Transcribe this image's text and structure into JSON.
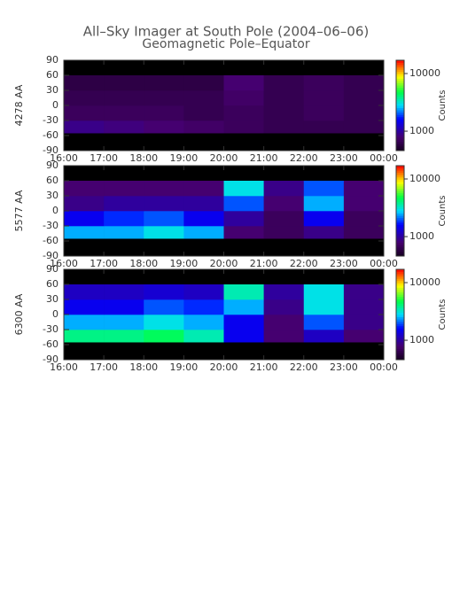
{
  "chart_data": [
    {
      "type": "heatmap",
      "title": "All–Sky Imager at South Pole (2004–06–06)",
      "subtitle": "Geomagnetic Pole–Equator",
      "ylabel": "4278 AA",
      "colorbar_label": "Counts",
      "x_bins": [
        16,
        17,
        18,
        19,
        20,
        21,
        22,
        23,
        24
      ],
      "y_bins": [
        -90,
        -55,
        -30,
        0,
        30,
        60,
        90
      ],
      "values": [
        [
          null,
          null,
          null,
          null,
          null,
          null,
          null,
          null
        ],
        [
          900,
          850,
          800,
          750,
          700,
          650,
          650,
          650
        ],
        [
          700,
          700,
          700,
          650,
          700,
          650,
          700,
          650
        ],
        [
          650,
          650,
          650,
          650,
          750,
          650,
          700,
          650
        ],
        [
          600,
          600,
          600,
          600,
          800,
          650,
          700,
          650
        ],
        [
          null,
          null,
          null,
          null,
          null,
          null,
          null,
          null
        ]
      ],
      "xlim": [
        16,
        24
      ],
      "ylim": [
        -90,
        90
      ],
      "clim": [
        460,
        17000
      ],
      "log_color": true,
      "xticks": [
        {
          "value": 16,
          "label": "16:00"
        },
        {
          "value": 17,
          "label": "17:00"
        },
        {
          "value": 18,
          "label": "18:00"
        },
        {
          "value": 19,
          "label": "19:00"
        },
        {
          "value": 20,
          "label": "20:00"
        },
        {
          "value": 21,
          "label": "21:00"
        },
        {
          "value": 22,
          "label": "22:00"
        },
        {
          "value": 23,
          "label": "23:00"
        },
        {
          "value": 24,
          "label": "00:00"
        }
      ],
      "yticks": [
        -90,
        -60,
        -30,
        0,
        30,
        60,
        90
      ],
      "cticks": [
        1000,
        10000
      ],
      "missing_color": "#000000"
    },
    {
      "type": "heatmap",
      "ylabel": "5577 AA",
      "colorbar_label": "Counts",
      "x_bins": [
        16,
        17,
        18,
        19,
        20,
        21,
        22,
        23,
        24
      ],
      "y_bins": [
        -90,
        -55,
        -30,
        0,
        30,
        60,
        90
      ],
      "values": [
        [
          null,
          null,
          null,
          null,
          null,
          null,
          null,
          null
        ],
        [
          2500,
          2500,
          3000,
          2500,
          800,
          700,
          900,
          700
        ],
        [
          1500,
          1800,
          2000,
          1500,
          1000,
          700,
          1500,
          700
        ],
        [
          900,
          1000,
          1000,
          1000,
          2000,
          800,
          2500,
          800
        ],
        [
          800,
          800,
          800,
          800,
          3000,
          900,
          2000,
          800
        ],
        [
          null,
          null,
          null,
          null,
          null,
          null,
          null,
          null
        ]
      ],
      "xlim": [
        16,
        24
      ],
      "ylim": [
        -90,
        90
      ],
      "clim": [
        460,
        17000
      ],
      "log_color": true,
      "xticks": [
        {
          "value": 16,
          "label": "16:00"
        },
        {
          "value": 17,
          "label": "17:00"
        },
        {
          "value": 18,
          "label": "18:00"
        },
        {
          "value": 19,
          "label": "19:00"
        },
        {
          "value": 20,
          "label": "20:00"
        },
        {
          "value": 21,
          "label": "21:00"
        },
        {
          "value": 22,
          "label": "22:00"
        },
        {
          "value": 23,
          "label": "23:00"
        },
        {
          "value": 24,
          "label": "00:00"
        }
      ],
      "yticks": [
        -90,
        -60,
        -30,
        0,
        30,
        60,
        90
      ],
      "cticks": [
        1000,
        10000
      ],
      "missing_color": "#000000"
    },
    {
      "type": "heatmap",
      "ylabel": "6300 AA",
      "colorbar_label": "Counts",
      "x_bins": [
        16,
        17,
        18,
        19,
        20,
        21,
        22,
        23,
        24
      ],
      "y_bins": [
        -90,
        -55,
        -30,
        0,
        30,
        60,
        90
      ],
      "values": [
        [
          null,
          null,
          null,
          null,
          null,
          null,
          null,
          null
        ],
        [
          4000,
          4000,
          4500,
          3500,
          1500,
          800,
          1200,
          800
        ],
        [
          2500,
          2500,
          3000,
          2500,
          1500,
          800,
          2000,
          900
        ],
        [
          1500,
          1500,
          2000,
          1800,
          2500,
          900,
          3000,
          900
        ],
        [
          1200,
          1200,
          1300,
          1200,
          3500,
          1000,
          3000,
          900
        ],
        [
          null,
          null,
          null,
          null,
          null,
          null,
          null,
          null
        ]
      ],
      "xlim": [
        16,
        24
      ],
      "ylim": [
        -90,
        90
      ],
      "clim": [
        460,
        17000
      ],
      "log_color": true,
      "xticks": [
        {
          "value": 16,
          "label": "16:00"
        },
        {
          "value": 17,
          "label": "17:00"
        },
        {
          "value": 18,
          "label": "18:00"
        },
        {
          "value": 19,
          "label": "19:00"
        },
        {
          "value": 20,
          "label": "20:00"
        },
        {
          "value": 21,
          "label": "21:00"
        },
        {
          "value": 22,
          "label": "22:00"
        },
        {
          "value": 23,
          "label": "23:00"
        },
        {
          "value": 24,
          "label": "00:00"
        }
      ],
      "yticks": [
        -90,
        -60,
        -30,
        0,
        30,
        60,
        90
      ],
      "cticks": [
        1000,
        10000
      ],
      "missing_color": "#000000"
    }
  ]
}
